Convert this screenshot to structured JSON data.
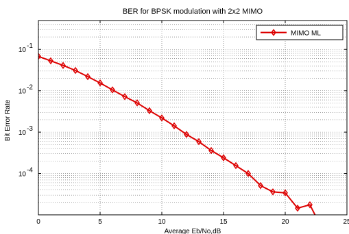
{
  "chart_data": {
    "type": "line",
    "title": "BER for BPSK modulation with 2x2 MIMO",
    "xlabel": "Average Eb/No,dB",
    "ylabel": "Bit Error Rate",
    "xlim": [
      0,
      25
    ],
    "ylim": [
      1e-05,
      0.5
    ],
    "yscale": "log",
    "grid": true,
    "legend_position": "top-right",
    "x_ticks": [
      0,
      5,
      10,
      15,
      20,
      25
    ],
    "x_tick_labels": [
      "0",
      "5",
      "10",
      "15",
      "20",
      "25"
    ],
    "y_ticks": [
      0.1,
      0.01,
      0.001,
      0.0001
    ],
    "y_tick_labels": [
      {
        "base": "10",
        "exp": "-1"
      },
      {
        "base": "10",
        "exp": "-2"
      },
      {
        "base": "10",
        "exp": "-3"
      },
      {
        "base": "10",
        "exp": "-4"
      }
    ],
    "series": [
      {
        "name": "MIMO ML",
        "color": "#dd0000",
        "marker": "diamond",
        "x": [
          0,
          1,
          2,
          3,
          4,
          5,
          6,
          7,
          8,
          9,
          10,
          11,
          12,
          13,
          14,
          15,
          16,
          17,
          18,
          19,
          20,
          21,
          22,
          23
        ],
        "y": [
          0.068,
          0.053,
          0.041,
          0.031,
          0.022,
          0.0155,
          0.0105,
          0.0072,
          0.0051,
          0.0033,
          0.0022,
          0.00142,
          0.00088,
          0.00059,
          0.00036,
          0.00024,
          0.000155,
          0.0001,
          5.1e-05,
          3.6e-05,
          3.4e-05,
          1.45e-05,
          1.75e-05,
          4.5e-06
        ]
      }
    ]
  }
}
